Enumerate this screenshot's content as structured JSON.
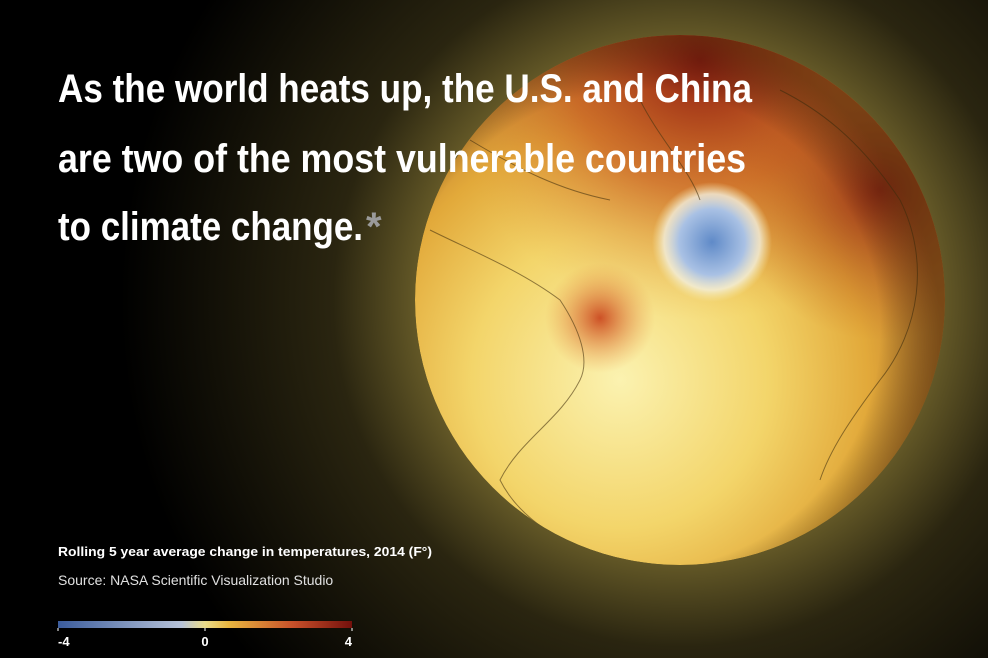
{
  "headline": [
    "As the world heats up, the U.S. and China",
    "are two of the most vulnerable countries",
    "to climate change."
  ],
  "asterisk": "*",
  "caption": "Rolling 5 year average change in temperatures, 2014 (F°)",
  "source": "Source: NASA Scientific Visualization Studio",
  "colorbar": {
    "lim": [
      -4,
      4
    ],
    "ticks": [
      -4,
      0,
      4
    ]
  }
}
